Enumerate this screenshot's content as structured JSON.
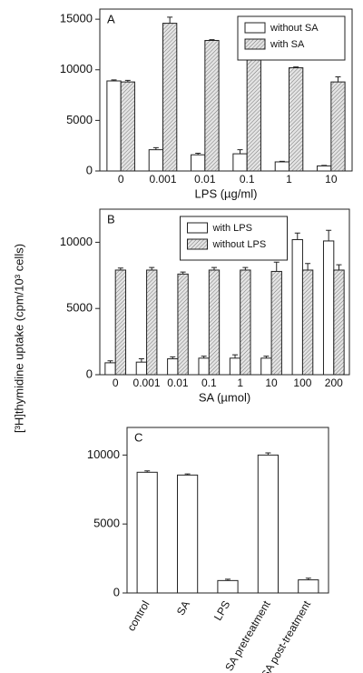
{
  "ylabel": "[³H]thymidine uptake (cpm/10³ cells)",
  "chart_data": [
    {
      "type": "bar",
      "panel_label": "A",
      "xlabel": "LPS (µg/ml)",
      "categories": [
        "0",
        "0.001",
        "0.01",
        "0.1",
        "1",
        "10"
      ],
      "ylim": [
        0,
        16000
      ],
      "yticks": [
        0,
        5000,
        10000,
        15000
      ],
      "legend": "upper right",
      "series": [
        {
          "name": "without SA",
          "color": "#ffffff",
          "hatch": false,
          "values": [
            8900,
            2100,
            1600,
            1700,
            900,
            500
          ],
          "errors": [
            100,
            200,
            150,
            400,
            50,
            50
          ]
        },
        {
          "name": "with SA",
          "color": "#d4d4d4",
          "hatch": true,
          "values": [
            8800,
            14600,
            12900,
            11500,
            10200,
            8800
          ],
          "errors": [
            150,
            600,
            80,
            900,
            80,
            500
          ]
        }
      ]
    },
    {
      "type": "bar",
      "panel_label": "B",
      "xlabel": "SA (µmol)",
      "categories": [
        "0",
        "0.001",
        "0.01",
        "0.1",
        "1",
        "10",
        "100",
        "200"
      ],
      "ylim": [
        0,
        12500
      ],
      "yticks": [
        0,
        5000,
        10000
      ],
      "legend": "upper center",
      "series": [
        {
          "name": "with LPS",
          "color": "#ffffff",
          "hatch": false,
          "values": [
            900,
            950,
            1200,
            1250,
            1250,
            1250,
            10200,
            10100
          ],
          "errors": [
            150,
            250,
            150,
            150,
            250,
            150,
            500,
            800
          ]
        },
        {
          "name": "without LPS",
          "color": "#d4d4d4",
          "hatch": true,
          "values": [
            7900,
            7900,
            7600,
            7900,
            7900,
            7800,
            7900,
            7900
          ],
          "errors": [
            150,
            200,
            150,
            200,
            200,
            700,
            500,
            400
          ]
        }
      ]
    },
    {
      "type": "bar",
      "panel_label": "C",
      "categories": [
        "control",
        "SA",
        "LPS",
        "SA pretreatment",
        "SA post-treatment"
      ],
      "ylim": [
        0,
        12000
      ],
      "yticks": [
        0,
        5000,
        10000
      ],
      "series": [
        {
          "color": "#ffffff",
          "hatch": false,
          "values": [
            8750,
            8550,
            900,
            10000,
            950
          ],
          "errors": [
            100,
            80,
            100,
            150,
            120
          ]
        }
      ]
    }
  ]
}
